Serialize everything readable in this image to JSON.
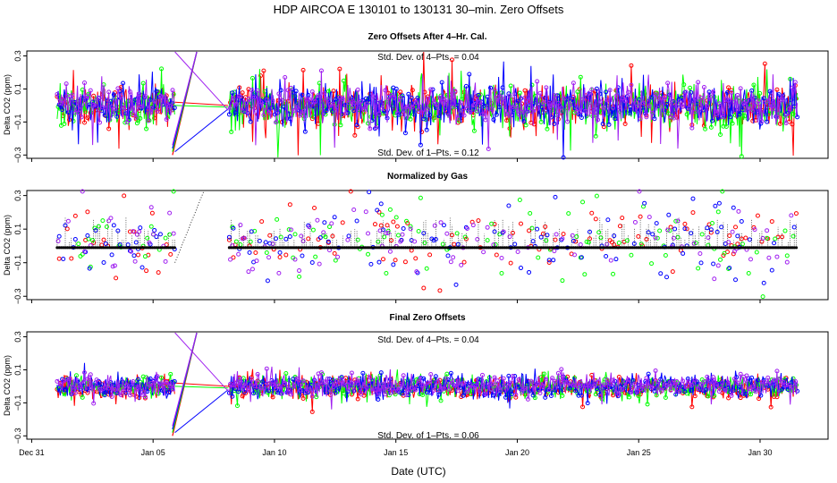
{
  "chart_data": {
    "type": "line",
    "title": "HDP    AIRCOA E    130101 to 130131    30–min. Zero Offsets",
    "xlabel": "Date (UTC)",
    "x_range_days": [
      -0.2,
      32.8
    ],
    "x_ticks": [
      {
        "label": "Dec 31",
        "day": 0
      },
      {
        "label": "Jan 05",
        "day": 5
      },
      {
        "label": "Jan 10",
        "day": 10
      },
      {
        "label": "Jan 15",
        "day": 15
      },
      {
        "label": "Jan 20",
        "day": 20
      },
      {
        "label": "Jan 25",
        "day": 25
      },
      {
        "label": "Jan 30",
        "day": 30
      }
    ],
    "series_colors": [
      "#ff0000",
      "#00ff00",
      "#0000ff",
      "#a020f0"
    ],
    "data_gaps": [
      [
        5.9,
        8.1
      ]
    ],
    "panels": [
      {
        "title": "Zero Offsets After 4–Hr. Cal.",
        "ylabel": "Delta CO2 (ppm)",
        "ylim": [
          -0.32,
          0.33
        ],
        "yticks": [
          {
            "v": 0.3,
            "label": "0.3"
          },
          {
            "v": 0.1,
            "label": "0.1"
          },
          {
            "v": -0.1,
            "label": "−0.1"
          },
          {
            "v": -0.3,
            "label": "−0.3"
          }
        ],
        "note_top": "Std. Dev. of 4–Pts. = 0.04",
        "note_bottom": "Std. Dev. of 1–Pts. = 0.12",
        "style": "lines",
        "spread": 0.06,
        "spike": 0.2,
        "gap_jump": true
      },
      {
        "title": "Normalized by Gas",
        "ylabel": "Delta CO2 (ppm)",
        "ylim": [
          -0.32,
          0.33
        ],
        "yticks": [
          {
            "v": 0.3,
            "label": "0.3"
          },
          {
            "v": 0.1,
            "label": "0.1"
          },
          {
            "v": -0.1,
            "label": "−0.1"
          },
          {
            "v": -0.3,
            "label": "−0.3"
          }
        ],
        "note_top": "",
        "note_bottom": "",
        "style": "points",
        "baseline": -0.01,
        "spread": 0.12,
        "spike": 0.3,
        "gap_jump": false
      },
      {
        "title": "Final Zero Offsets",
        "ylabel": "Delta CO2 (ppm)",
        "ylim": [
          -0.32,
          0.33
        ],
        "yticks": [
          {
            "v": 0.3,
            "label": "0.3"
          },
          {
            "v": 0.1,
            "label": "0.1"
          },
          {
            "v": -0.1,
            "label": "−0.1"
          },
          {
            "v": -0.3,
            "label": "−0.3"
          }
        ],
        "note_top": "Std. Dev. of 4–Pts. = 0.04",
        "note_bottom": "Std. Dev. of 1–Pts. = 0.06",
        "style": "lines",
        "spread": 0.035,
        "spike": 0.08,
        "gap_jump": true
      }
    ]
  }
}
